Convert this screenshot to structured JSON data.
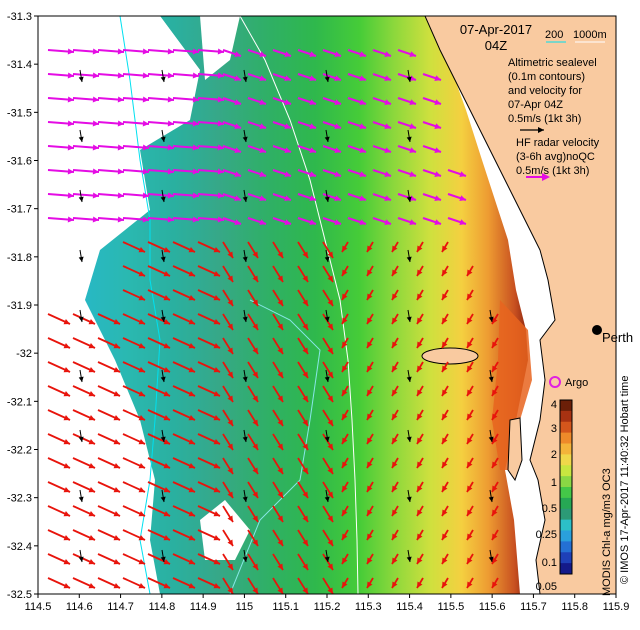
{
  "header": {
    "date": "07-Apr-2017",
    "time": "04Z"
  },
  "depth_legend": {
    "label_200": "200",
    "label_1000": "1000m"
  },
  "altimetry_legend": {
    "lines": [
      "Altimetric sealevel",
      "(0.1m contours)",
      "and velocity for",
      "07-Apr 04Z",
      "0.5m/s (1kt 3h)"
    ]
  },
  "hf_legend": {
    "lines": [
      "HF radar velocity",
      "(3-6h avg)noQC",
      "0.5m/s (1kt 3h)"
    ]
  },
  "places": {
    "perth": "Perth",
    "argo": "Argo"
  },
  "colorbar": {
    "ticks": [
      "4",
      "3",
      "2",
      "1",
      "0.5",
      "0.25",
      "0.1",
      "0.05"
    ],
    "label": "MODIS Chl-a mg/m3 OC3",
    "colors": [
      "#6b1f08",
      "#a83212",
      "#d4561c",
      "#ee8a2a",
      "#f4b43a",
      "#f0d84a",
      "#c8e640",
      "#8ad844",
      "#44c848",
      "#26a854",
      "#2c9a76",
      "#2cc0c8",
      "#2aa0dc",
      "#2470d4",
      "#1e40b8",
      "#141a8a"
    ]
  },
  "credit": "© IMOS 17-Apr-2017 11:40:32 Hobart time",
  "axes": {
    "x_ticks": [
      "114.5",
      "114.6",
      "114.7",
      "114.8",
      "114.9",
      "115",
      "115.1",
      "115.2",
      "115.3",
      "115.4",
      "115.5",
      "115.6",
      "115.7",
      "115.8",
      "115.9"
    ],
    "y_ticks": [
      "-31.3",
      "-31.4",
      "-31.5",
      "-31.6",
      "-31.7",
      "-31.8",
      "-31.9",
      "-32",
      "-32.1",
      "-32.2",
      "-32.3",
      "-32.4",
      "-32.5"
    ],
    "lon_range": [
      114.5,
      115.9
    ],
    "lat_range": [
      -32.5,
      -31.3
    ]
  },
  "colors": {
    "land": "#f9caa0",
    "coast_line": "#000000",
    "hf_arrow": "#e8140c",
    "hf_arrow_north": "#e40ce4",
    "alt_arrow": "#000000",
    "depth_200": "#00e0f0",
    "depth_1000": "#ffffff",
    "argo_marker": "#e020e0"
  }
}
